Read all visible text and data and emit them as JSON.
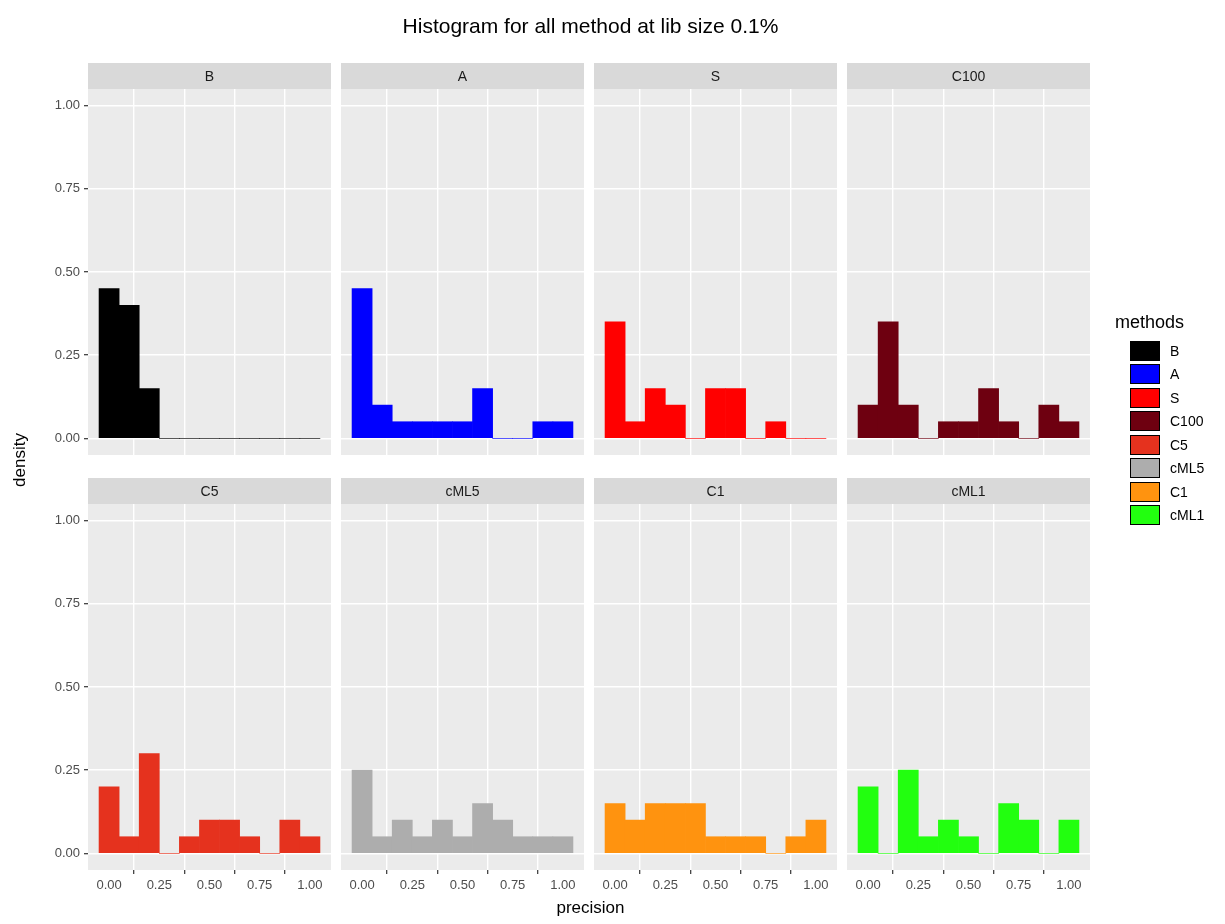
{
  "chart_data": [
    {
      "type": "other",
      "title": "Histogram for all method at lib size 0.1%",
      "xlabel": "precision"
    },
    {
      "type": "histogram",
      "ylabel": "density",
      "legend_title": "methods",
      "legend": "right",
      "tick_labels": "y",
      "grid": true,
      "bins": [
        -0.05,
        0.05,
        0.15,
        0.25,
        0.35,
        0.45,
        0.55,
        0.65,
        0.75,
        0.85,
        0.95,
        1.05
      ],
      "xlim": [
        -0.105,
        1.105
      ],
      "ylim": [
        -0.05,
        1.05
      ],
      "xticks": [
        0,
        0.25,
        0.5,
        0.75,
        1
      ],
      "yticks": [
        {
          "value": 0,
          "label": "0.00"
        },
        {
          "value": 0.25,
          "label": "0.25"
        },
        {
          "value": 0.5,
          "label": "0.50"
        },
        {
          "value": 0.75,
          "label": "0.75"
        },
        {
          "value": 1,
          "label": "1.00"
        }
      ],
      "series": [
        {
          "name": "B",
          "color": "#000000",
          "values": [
            0.45,
            0.4,
            0.15,
            0,
            0,
            0,
            0,
            0,
            0,
            0,
            0
          ]
        }
      ]
    },
    {
      "type": "histogram",
      "tick_labels": false,
      "grid": true,
      "bins": [
        -0.05,
        0.05,
        0.15,
        0.25,
        0.35,
        0.45,
        0.55,
        0.65,
        0.75,
        0.85,
        0.95,
        1.05
      ],
      "xlim": [
        -0.105,
        1.105
      ],
      "ylim": [
        -0.05,
        1.05
      ],
      "xticks": [
        0,
        0.25,
        0.5,
        0.75,
        1
      ],
      "yticks": [
        0,
        0.25,
        0.5,
        0.75,
        1
      ],
      "series": [
        {
          "name": "A",
          "color": "#0000ff",
          "values": [
            0.45,
            0.1,
            0.05,
            0.05,
            0.05,
            0.05,
            0.15,
            0,
            0,
            0.05,
            0.05
          ]
        }
      ]
    },
    {
      "type": "histogram",
      "tick_labels": false,
      "grid": true,
      "bins": [
        -0.05,
        0.05,
        0.15,
        0.25,
        0.35,
        0.45,
        0.55,
        0.65,
        0.75,
        0.85,
        0.95,
        1.05
      ],
      "xlim": [
        -0.105,
        1.105
      ],
      "ylim": [
        -0.05,
        1.05
      ],
      "xticks": [
        0,
        0.25,
        0.5,
        0.75,
        1
      ],
      "yticks": [
        0,
        0.25,
        0.5,
        0.75,
        1
      ],
      "series": [
        {
          "name": "S",
          "color": "#ff0000",
          "values": [
            0.35,
            0.05,
            0.15,
            0.1,
            0,
            0.15,
            0.15,
            0,
            0.05,
            0,
            0
          ]
        }
      ]
    },
    {
      "type": "histogram",
      "tick_labels": false,
      "grid": true,
      "bins": [
        -0.05,
        0.05,
        0.15,
        0.25,
        0.35,
        0.45,
        0.55,
        0.65,
        0.75,
        0.85,
        0.95,
        1.05
      ],
      "xlim": [
        -0.105,
        1.105
      ],
      "ylim": [
        -0.05,
        1.05
      ],
      "xticks": [
        0,
        0.25,
        0.5,
        0.75,
        1
      ],
      "yticks": [
        0,
        0.25,
        0.5,
        0.75,
        1
      ],
      "series": [
        {
          "name": "C100",
          "color": "#6e0010",
          "values": [
            0.1,
            0.35,
            0.1,
            0,
            0.05,
            0.05,
            0.15,
            0.05,
            0,
            0.1,
            0.05
          ]
        }
      ]
    },
    {
      "type": "histogram",
      "grid": true,
      "bins": [
        -0.05,
        0.05,
        0.15,
        0.25,
        0.35,
        0.45,
        0.55,
        0.65,
        0.75,
        0.85,
        0.95,
        1.05
      ],
      "xlim": [
        -0.105,
        1.105
      ],
      "ylim": [
        -0.05,
        1.05
      ],
      "xticks": [
        {
          "value": 0,
          "label": "0.00"
        },
        {
          "value": 0.25,
          "label": "0.25"
        },
        {
          "value": 0.5,
          "label": "0.50"
        },
        {
          "value": 0.75,
          "label": "0.75"
        },
        {
          "value": 1,
          "label": "1.00"
        }
      ],
      "yticks": [
        {
          "value": 0,
          "label": "0.00"
        },
        {
          "value": 0.25,
          "label": "0.25"
        },
        {
          "value": 0.5,
          "label": "0.50"
        },
        {
          "value": 0.75,
          "label": "0.75"
        },
        {
          "value": 1,
          "label": "1.00"
        }
      ],
      "series": [
        {
          "name": "C5",
          "color": "#e5321e",
          "values": [
            0.2,
            0.05,
            0.3,
            0,
            0.05,
            0.1,
            0.1,
            0.05,
            0,
            0.1,
            0.05
          ]
        }
      ]
    },
    {
      "type": "histogram",
      "tick_labels": "x",
      "grid": true,
      "bins": [
        -0.05,
        0.05,
        0.15,
        0.25,
        0.35,
        0.45,
        0.55,
        0.65,
        0.75,
        0.85,
        0.95,
        1.05
      ],
      "xlim": [
        -0.105,
        1.105
      ],
      "ylim": [
        -0.05,
        1.05
      ],
      "xticks": [
        {
          "value": 0,
          "label": "0.00"
        },
        {
          "value": 0.25,
          "label": "0.25"
        },
        {
          "value": 0.5,
          "label": "0.50"
        },
        {
          "value": 0.75,
          "label": "0.75"
        },
        {
          "value": 1,
          "label": "1.00"
        }
      ],
      "yticks": [
        0,
        0.25,
        0.5,
        0.75,
        1
      ],
      "series": [
        {
          "name": "cML5",
          "color": "#adadad",
          "values": [
            0.25,
            0.05,
            0.1,
            0.05,
            0.1,
            0.05,
            0.15,
            0.1,
            0.05,
            0.05,
            0.05
          ]
        }
      ]
    },
    {
      "type": "histogram",
      "tick_labels": "x",
      "grid": true,
      "bins": [
        -0.05,
        0.05,
        0.15,
        0.25,
        0.35,
        0.45,
        0.55,
        0.65,
        0.75,
        0.85,
        0.95,
        1.05
      ],
      "xlim": [
        -0.105,
        1.105
      ],
      "ylim": [
        -0.05,
        1.05
      ],
      "xticks": [
        {
          "value": 0,
          "label": "0.00"
        },
        {
          "value": 0.25,
          "label": "0.25"
        },
        {
          "value": 0.5,
          "label": "0.50"
        },
        {
          "value": 0.75,
          "label": "0.75"
        },
        {
          "value": 1,
          "label": "1.00"
        }
      ],
      "yticks": [
        0,
        0.25,
        0.5,
        0.75,
        1
      ],
      "series": [
        {
          "name": "C1",
          "color": "#ff930f",
          "values": [
            0.15,
            0.1,
            0.15,
            0.15,
            0.15,
            0.05,
            0.05,
            0.05,
            0,
            0.05,
            0.1
          ]
        }
      ]
    },
    {
      "type": "histogram",
      "tick_labels": "x",
      "grid": true,
      "bins": [
        -0.05,
        0.05,
        0.15,
        0.25,
        0.35,
        0.45,
        0.55,
        0.65,
        0.75,
        0.85,
        0.95,
        1.05
      ],
      "xlim": [
        -0.105,
        1.105
      ],
      "ylim": [
        -0.05,
        1.05
      ],
      "xticks": [
        {
          "value": 0,
          "label": "0.00"
        },
        {
          "value": 0.25,
          "label": "0.25"
        },
        {
          "value": 0.5,
          "label": "0.50"
        },
        {
          "value": 0.75,
          "label": "0.75"
        },
        {
          "value": 1,
          "label": "1.00"
        }
      ],
      "yticks": [
        0,
        0.25,
        0.5,
        0.75,
        1
      ],
      "series": [
        {
          "name": "cML1",
          "color": "#22ff0f",
          "values": [
            0.2,
            0,
            0.25,
            0.05,
            0.1,
            0.05,
            0,
            0.15,
            0.1,
            0,
            0.1
          ]
        }
      ]
    }
  ]
}
